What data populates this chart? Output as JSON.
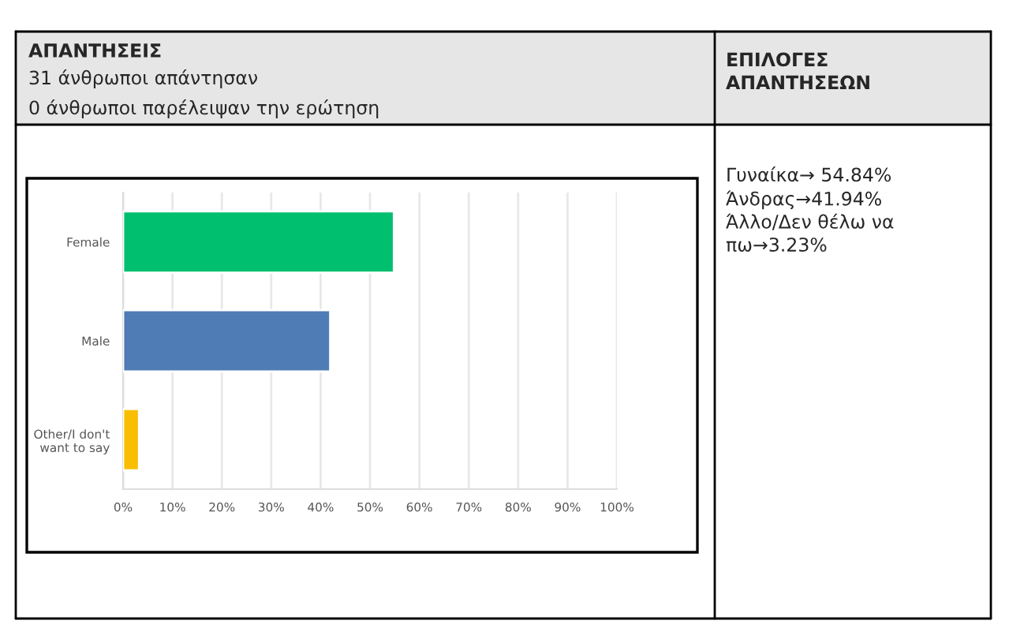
{
  "chart_data": {
    "type": "bar",
    "orientation": "horizontal",
    "categories": [
      "Female",
      "Male",
      "Other/I don't\nwant to say"
    ],
    "values": [
      54.84,
      41.94,
      3.23
    ],
    "colors": [
      "#00bf6f",
      "#507cb6",
      "#f9be00"
    ],
    "xlim": [
      0,
      100
    ],
    "xticks": [
      {
        "value": 0,
        "label": "0%"
      },
      {
        "value": 10,
        "label": "10%"
      },
      {
        "value": 20,
        "label": "20%"
      },
      {
        "value": 30,
        "label": "30%"
      },
      {
        "value": 40,
        "label": "40%"
      },
      {
        "value": 50,
        "label": "50%"
      },
      {
        "value": 60,
        "label": "60%"
      },
      {
        "value": 70,
        "label": "70%"
      },
      {
        "value": 80,
        "label": "80%"
      },
      {
        "value": 90,
        "label": "90%"
      },
      {
        "value": 100,
        "label": "100%"
      }
    ],
    "grid": "x",
    "legend": false,
    "annotations": [
      "ΑΠΑΝΤΗΣΕΙΣ",
      "31 άνθρωποι απάντησαν",
      "0 άνθρωποι παρέλειψαν την ερώτηση",
      "ΕΠΙΛΟΓΕΣ\nΑΠΑΝΤΗΣΕΩΝ",
      "Γυναίκα→ 54.84%\nΆνδρας→41.94%\nΆλλο/Δεν θέλω να\nπω→3.23%"
    ]
  }
}
